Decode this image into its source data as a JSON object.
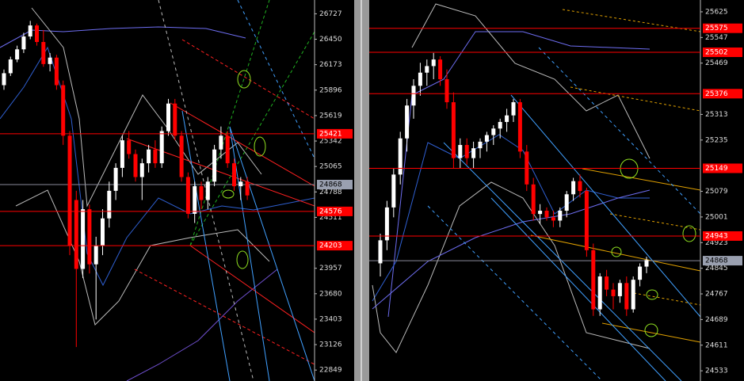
{
  "chart_data": [
    {
      "type": "candlestick",
      "ylim": [
        22730,
        26877
      ],
      "yticks": [
        26727,
        26450,
        26173,
        25896,
        25619,
        25342,
        25065,
        24788,
        24511,
        23957,
        23680,
        23403,
        23126,
        22849
      ],
      "levels": [
        25421,
        24576,
        24203
      ],
      "level_color": "#ff0000",
      "last_price": 24868,
      "up_color": "#ffffff",
      "down_color": "#ff0000",
      "candles": [
        [
          25950,
          26120,
          25900,
          26080
        ],
        [
          26080,
          26260,
          26050,
          26230
        ],
        [
          26230,
          26380,
          26200,
          26340
        ],
        [
          26340,
          26520,
          26300,
          26480
        ],
        [
          26480,
          26650,
          26450,
          26600
        ],
        [
          26600,
          26620,
          26380,
          26420
        ],
        [
          26420,
          26550,
          26150,
          26180
        ],
        [
          26180,
          26300,
          26100,
          26250
        ],
        [
          26250,
          26280,
          25900,
          25950
        ],
        [
          25950,
          26000,
          25300,
          25400
        ],
        [
          25400,
          25450,
          24100,
          24200
        ],
        [
          24700,
          24800,
          23100,
          23950
        ],
        [
          23950,
          24700,
          23850,
          24600
        ],
        [
          24600,
          24650,
          23900,
          24000
        ],
        [
          24000,
          24300,
          23400,
          24200
        ],
        [
          24200,
          24600,
          24100,
          24500
        ],
        [
          24500,
          24900,
          24400,
          24800
        ],
        [
          24800,
          25100,
          24700,
          25050
        ],
        [
          25050,
          25400,
          24950,
          25350
        ],
        [
          25350,
          25450,
          25150,
          25200
        ],
        [
          25200,
          25250,
          24900,
          24950
        ],
        [
          24950,
          25150,
          24700,
          25100
        ],
        [
          25100,
          25300,
          25000,
          25250
        ],
        [
          25250,
          25350,
          25050,
          25100
        ],
        [
          25100,
          25500,
          25050,
          25450
        ],
        [
          25450,
          25800,
          25400,
          25750
        ],
        [
          25750,
          25800,
          25350,
          25400
        ],
        [
          25400,
          25450,
          24900,
          24950
        ],
        [
          24950,
          25000,
          24500,
          24550
        ],
        [
          24550,
          24900,
          24450,
          24850
        ],
        [
          24850,
          24900,
          24600,
          24700
        ],
        [
          24700,
          24950,
          24600,
          24900
        ],
        [
          24900,
          25300,
          24850,
          25250
        ],
        [
          25250,
          25500,
          25150,
          25400
        ],
        [
          25400,
          25450,
          25050,
          25100
        ],
        [
          25100,
          25150,
          24800,
          24850
        ],
        [
          24850,
          24950,
          24700,
          24900
        ],
        [
          24900,
          24950,
          24700,
          24750
        ]
      ]
    },
    {
      "type": "candlestick",
      "ylim": [
        24502,
        25661
      ],
      "yticks": [
        25625,
        25547,
        25469,
        25313,
        25235,
        25079,
        25001,
        24923,
        24845,
        24767,
        24689,
        24611,
        24533
      ],
      "levels": [
        25575,
        25502,
        25376,
        25149,
        24943
      ],
      "level_color": "#ff0000",
      "last_price": 24868,
      "up_color": "#ffffff",
      "down_color": "#ff0000",
      "candles": [
        [
          24860,
          24950,
          24820,
          24930
        ],
        [
          24930,
          25050,
          24900,
          25030
        ],
        [
          25030,
          25150,
          25000,
          25130
        ],
        [
          25130,
          25260,
          25100,
          25240
        ],
        [
          25240,
          25360,
          25200,
          25340
        ],
        [
          25340,
          25420,
          25300,
          25400
        ],
        [
          25400,
          25470,
          25370,
          25440
        ],
        [
          25440,
          25480,
          25400,
          25460
        ],
        [
          25460,
          25500,
          25420,
          25480
        ],
        [
          25480,
          25490,
          25400,
          25420
        ],
        [
          25420,
          25450,
          25330,
          25350
        ],
        [
          25350,
          25380,
          25150,
          25180
        ],
        [
          25180,
          25240,
          25150,
          25220
        ],
        [
          25220,
          25240,
          25160,
          25180
        ],
        [
          25180,
          25230,
          25150,
          25210
        ],
        [
          25210,
          25240,
          25180,
          25230
        ],
        [
          25230,
          25260,
          25200,
          25250
        ],
        [
          25250,
          25280,
          25220,
          25270
        ],
        [
          25270,
          25300,
          25240,
          25290
        ],
        [
          25290,
          25330,
          25260,
          25310
        ],
        [
          25310,
          25360,
          25290,
          25350
        ],
        [
          25350,
          25360,
          25180,
          25200
        ],
        [
          25200,
          25220,
          25080,
          25100
        ],
        [
          25100,
          25120,
          24990,
          25010
        ],
        [
          25010,
          25040,
          24980,
          25020
        ],
        [
          25020,
          25030,
          24990,
          25000
        ],
        [
          25000,
          25020,
          24970,
          24990
        ],
        [
          24990,
          25030,
          24970,
          25020
        ],
        [
          25020,
          25080,
          25000,
          25070
        ],
        [
          25070,
          25120,
          25050,
          25110
        ],
        [
          25110,
          25130,
          25060,
          25080
        ],
        [
          25080,
          25090,
          24880,
          24900
        ],
        [
          24900,
          24920,
          24700,
          24720
        ],
        [
          24720,
          24830,
          24700,
          24820
        ],
        [
          24820,
          24840,
          24760,
          24780
        ],
        [
          24780,
          24800,
          24720,
          24760
        ],
        [
          24760,
          24810,
          24740,
          24800
        ],
        [
          24800,
          24820,
          24700,
          24720
        ],
        [
          24720,
          24820,
          24710,
          24810
        ],
        [
          24810,
          24860,
          24790,
          24850
        ],
        [
          24850,
          24880,
          24830,
          24870
        ]
      ]
    }
  ]
}
